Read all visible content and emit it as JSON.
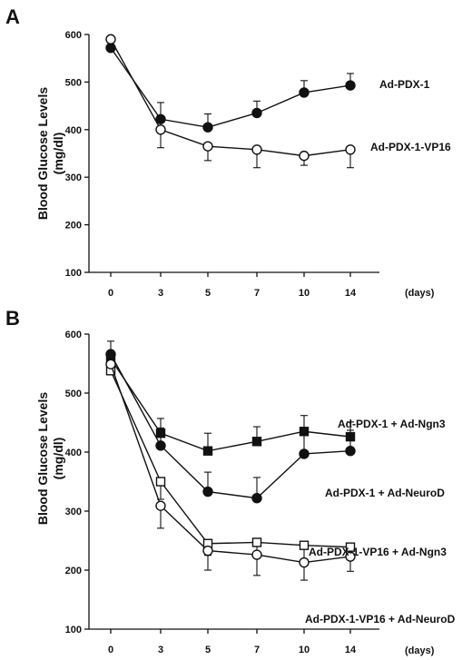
{
  "chart_data": [
    {
      "type": "line",
      "panel_label": "A",
      "ylabel": [
        "Blood Glucose Levels",
        "(mg/dl)"
      ],
      "xlabel": "(days)",
      "categories": [
        "0",
        "3",
        "5",
        "7",
        "10",
        "14"
      ],
      "ylim": [
        100,
        600
      ],
      "yticks": [
        100,
        200,
        300,
        400,
        500,
        600
      ],
      "series": [
        {
          "name": "Ad-PDX-1",
          "marker": "filled-circle",
          "values": [
            572,
            422,
            405,
            435,
            478,
            493
          ],
          "errors": [
            0,
            35,
            28,
            25,
            25,
            25
          ]
        },
        {
          "name": "Ad-PDX-1-VP16",
          "marker": "open-circle",
          "values": [
            590,
            400,
            365,
            358,
            345,
            358
          ],
          "errors": [
            0,
            38,
            30,
            38,
            20,
            38
          ]
        }
      ]
    },
    {
      "type": "line",
      "panel_label": "B",
      "ylabel": [
        "Blood Glucose Levels",
        "(mg/dl)"
      ],
      "xlabel": "(days)",
      "categories": [
        "0",
        "3",
        "5",
        "7",
        "10",
        "14"
      ],
      "ylim": [
        100,
        600
      ],
      "yticks": [
        100,
        200,
        300,
        400,
        500,
        600
      ],
      "series": [
        {
          "name": "Ad-PDX-1 + Ad-Ngn3",
          "marker": "filled-square",
          "values": [
            558,
            432,
            402,
            418,
            435,
            426
          ],
          "errors": [
            0,
            25,
            30,
            25,
            27,
            25
          ]
        },
        {
          "name": "Ad-PDX-1 + Ad-NeuroD",
          "marker": "filled-circle",
          "values": [
            566,
            411,
            333,
            322,
            397,
            402
          ],
          "errors": [
            22,
            30,
            33,
            35,
            35,
            35
          ]
        },
        {
          "name": "Ad-PDX-1-VP16 + Ad-Ngn3",
          "marker": "open-square",
          "values": [
            538,
            350,
            245,
            247,
            242,
            239
          ],
          "errors": [
            18,
            30,
            20,
            20,
            25,
            20
          ]
        },
        {
          "name": "Ad-PDX-1-VP16 + Ad-NeuroD",
          "marker": "open-circle",
          "values": [
            549,
            309,
            233,
            226,
            213,
            223
          ],
          "errors": [
            0,
            38,
            33,
            35,
            30,
            25
          ]
        }
      ]
    }
  ]
}
